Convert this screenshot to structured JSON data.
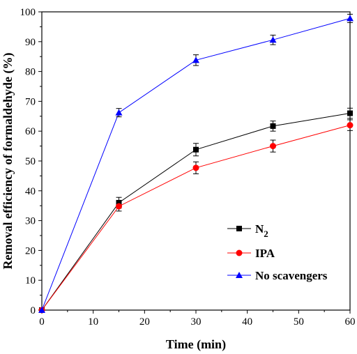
{
  "chart_data": {
    "type": "line",
    "xlabel": "Time (min)",
    "ylabel": "Removal efficiency of formaldehyde (%)",
    "xlim": [
      0,
      60
    ],
    "ylim": [
      0,
      100
    ],
    "x_ticks": [
      0,
      10,
      20,
      30,
      40,
      50,
      60
    ],
    "y_ticks": [
      0,
      10,
      20,
      30,
      40,
      50,
      60,
      70,
      80,
      90,
      100
    ],
    "grid": false,
    "legend_position": "bottom-right",
    "series": [
      {
        "name": "N2",
        "legend_label": "N",
        "legend_subscript": "2",
        "color": "#000000",
        "marker": "square",
        "x": [
          0,
          15,
          30,
          45,
          60
        ],
        "y": [
          0,
          36,
          53.8,
          61.7,
          66
        ],
        "error": [
          0,
          1.8,
          2.1,
          1.7,
          1.7
        ]
      },
      {
        "name": "IPA",
        "legend_label": "IPA",
        "color": "#ff0000",
        "marker": "circle",
        "x": [
          0,
          15,
          30,
          45,
          60
        ],
        "y": [
          0,
          34.8,
          47.7,
          55,
          62
        ],
        "error": [
          0,
          1.6,
          2.0,
          2.0,
          1.8
        ]
      },
      {
        "name": "No scavengers",
        "legend_label": "No scavengers",
        "color": "#0000ff",
        "marker": "triangle",
        "x": [
          0,
          15,
          30,
          45,
          60
        ],
        "y": [
          0,
          66.2,
          83.8,
          90.6,
          97.8
        ],
        "error": [
          0,
          1.4,
          1.8,
          1.6,
          1.4
        ]
      }
    ]
  }
}
